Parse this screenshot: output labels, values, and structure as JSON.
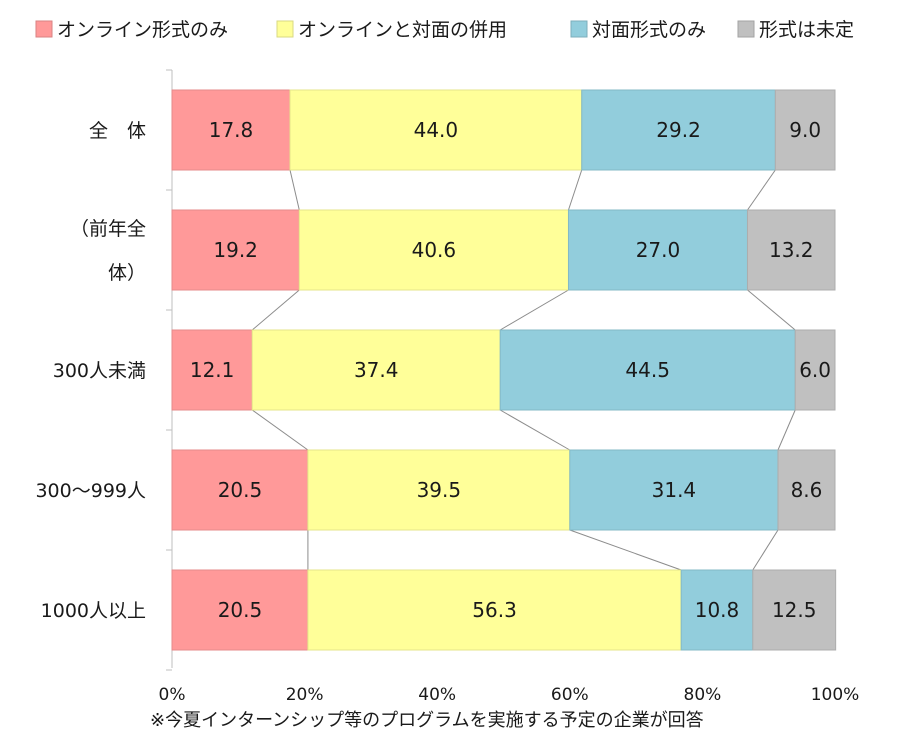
{
  "chart_data": {
    "type": "bar",
    "orientation": "horizontal",
    "stacked": "percent",
    "categories": [
      "全　体",
      "（前年全体）",
      "300人未満",
      "300〜999人",
      "1000人以上"
    ],
    "category_lines": [
      [
        "全　体"
      ],
      [
        "（前年全",
        "体）"
      ],
      [
        "300人未満"
      ],
      [
        "300〜999人"
      ],
      [
        "1000人以上"
      ]
    ],
    "series": [
      {
        "name": "オンライン形式のみ",
        "color": "#ff9999",
        "values": [
          17.8,
          19.2,
          12.1,
          20.5,
          20.5
        ]
      },
      {
        "name": "オンラインと対面の併用",
        "color": "#ffff99",
        "values": [
          44.0,
          40.6,
          37.4,
          39.5,
          56.3
        ]
      },
      {
        "name": "対面形式のみ",
        "color": "#92cddc",
        "values": [
          29.2,
          27.0,
          44.5,
          31.4,
          10.8
        ]
      },
      {
        "name": "形式は未定",
        "color": "#c0c0c0",
        "values": [
          9.0,
          13.2,
          6.0,
          8.6,
          12.5
        ]
      }
    ],
    "xlim": [
      0,
      100
    ],
    "xticks": [
      "0%",
      "20%",
      "40%",
      "60%",
      "80%",
      "100%"
    ],
    "legend_position": "top",
    "series_connector_lines": true,
    "grid": false
  },
  "note": "※今夏インターンシップ等のプログラムを実施する予定の企業が回答"
}
